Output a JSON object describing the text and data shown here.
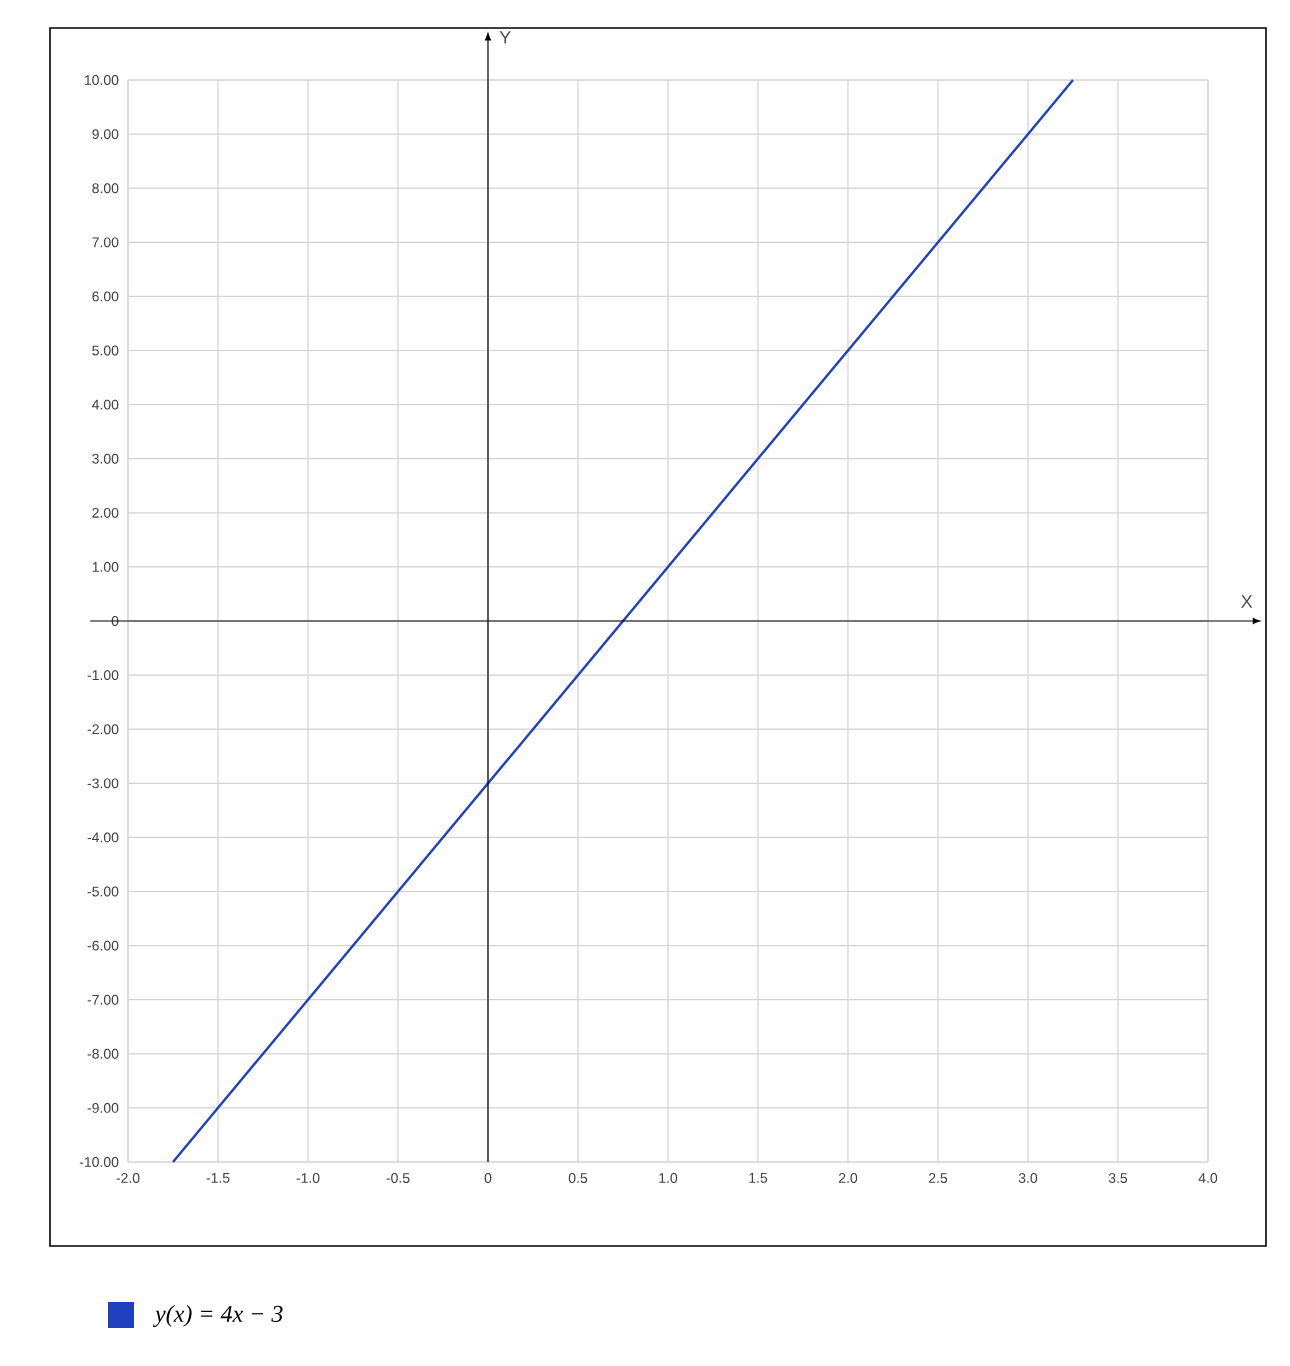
{
  "chart_data": {
    "type": "line",
    "xlabel": "X",
    "ylabel": "Y",
    "x": [
      -1.75,
      3.25
    ],
    "series": [
      {
        "name": "y(x) = 4x − 3",
        "color": "#1f3fbf",
        "values": [
          -10,
          10
        ]
      }
    ],
    "xlim": [
      -2,
      4
    ],
    "ylim": [
      -10,
      10
    ],
    "xticks": [
      {
        "value": -2,
        "label": "-2.0"
      },
      {
        "value": -1.5,
        "label": "-1.5"
      },
      {
        "value": -1,
        "label": "-1.0"
      },
      {
        "value": -0.5,
        "label": "-0.5"
      },
      0,
      {
        "value": 0.5,
        "label": "0.5"
      },
      {
        "value": 1,
        "label": "1.0"
      },
      {
        "value": 1.5,
        "label": "1.5"
      },
      {
        "value": 2,
        "label": "2.0"
      },
      {
        "value": 2.5,
        "label": "2.5"
      },
      {
        "value": 3,
        "label": "3.0"
      },
      {
        "value": 3.5,
        "label": "3.5"
      },
      {
        "value": 4,
        "label": "4.0"
      }
    ],
    "yticks": [
      {
        "value": -10,
        "label": "-10.00"
      },
      {
        "value": -9,
        "label": "-9.00"
      },
      {
        "value": -8,
        "label": "-8.00"
      },
      {
        "value": -7,
        "label": "-7.00"
      },
      {
        "value": -6,
        "label": "-6.00"
      },
      {
        "value": -5,
        "label": "-5.00"
      },
      {
        "value": -4,
        "label": "-4.00"
      },
      {
        "value": -3,
        "label": "-3.00"
      },
      {
        "value": -2,
        "label": "-2.00"
      },
      {
        "value": -1,
        "label": "-1.00"
      },
      0,
      {
        "value": 1,
        "label": "1.00"
      },
      {
        "value": 2,
        "label": "2.00"
      },
      {
        "value": 3,
        "label": "3.00"
      },
      {
        "value": 4,
        "label": "4.00"
      },
      {
        "value": 5,
        "label": "5.00"
      },
      {
        "value": 6,
        "label": "6.00"
      },
      {
        "value": 7,
        "label": "7.00"
      },
      {
        "value": 8,
        "label": "8.00"
      },
      {
        "value": 9,
        "label": "9.00"
      },
      {
        "value": 10,
        "label": "10.00"
      }
    ],
    "grid": true,
    "legend": "bottom",
    "marker": "none",
    "line_style": "solid"
  }
}
